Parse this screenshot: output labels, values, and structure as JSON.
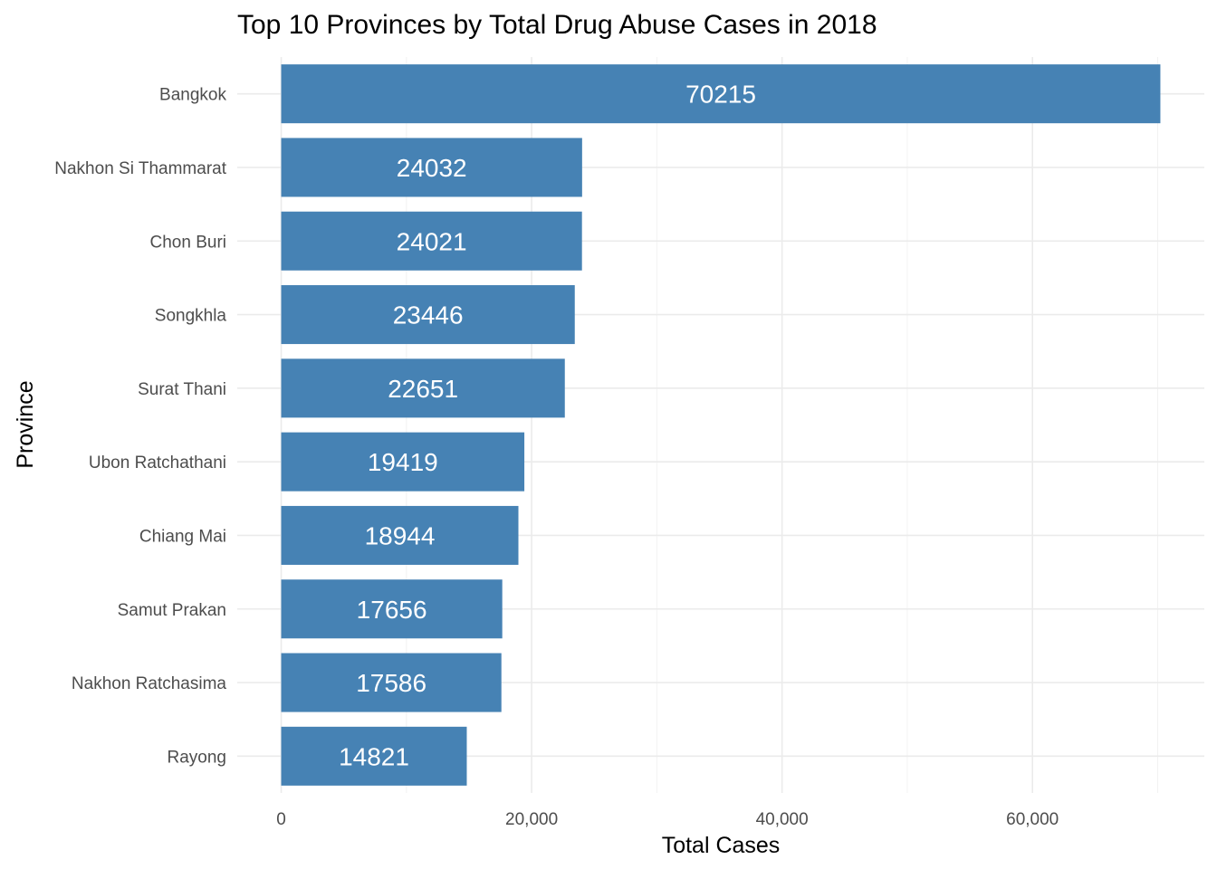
{
  "chart_data": {
    "type": "bar",
    "orientation": "horizontal",
    "title": "Top 10 Provinces by Total Drug Abuse Cases in 2018",
    "xlabel": "Total Cases",
    "ylabel": "Province",
    "categories": [
      "Bangkok",
      "Nakhon Si Thammarat",
      "Chon Buri",
      "Songkhla",
      "Surat Thani",
      "Ubon Ratchathani",
      "Chiang Mai",
      "Samut Prakan",
      "Nakhon Ratchasima",
      "Rayong"
    ],
    "values": [
      70215,
      24032,
      24021,
      23446,
      22651,
      19419,
      18944,
      17656,
      17586,
      14821
    ],
    "data_labels": [
      "70215",
      "24032",
      "24021",
      "23446",
      "22651",
      "19419",
      "18944",
      "17656",
      "17586",
      "14821"
    ],
    "xlim": [
      -3511,
      73726
    ],
    "x_ticks": [
      0,
      20000,
      40000,
      60000
    ],
    "x_tick_labels": [
      "0",
      "20,000",
      "40,000",
      "60,000"
    ],
    "x_minor_ticks": [
      10000,
      30000,
      50000,
      70000
    ],
    "grid": true,
    "legend": "none",
    "colors": {
      "bar": "#4682b4",
      "grid_major": "#ebebeb",
      "grid_minor": "#f2f2f2",
      "tick_text": "#4d4d4d",
      "text": "#000000",
      "bar_label": "#ffffff"
    }
  }
}
